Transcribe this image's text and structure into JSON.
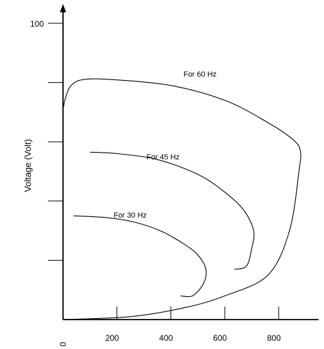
{
  "chart_data": {
    "type": "line",
    "title": "",
    "xlabel": "",
    "ylabel": "Voltage (Volt)",
    "xlim": [
      0,
      870
    ],
    "ylim": [
      0,
      100
    ],
    "x_ticks": [
      {
        "value": 0,
        "label": "0"
      },
      {
        "value": 200,
        "label": "200"
      },
      {
        "value": 400,
        "label": "400"
      },
      {
        "value": 600,
        "label": "600"
      },
      {
        "value": 800,
        "label": "800"
      }
    ],
    "y_ticks": [
      {
        "value": 20,
        "label": ""
      },
      {
        "value": 40,
        "label": ""
      },
      {
        "value": 60,
        "label": ""
      },
      {
        "value": 80,
        "label": ""
      },
      {
        "value": 100,
        "label": "100"
      }
    ],
    "grid": false,
    "legend": "none",
    "series": [
      {
        "name": "For 60 Hz",
        "points": [
          [
            0,
            71
          ],
          [
            10,
            75
          ],
          [
            30,
            79
          ],
          [
            75,
            81
          ],
          [
            180,
            81
          ],
          [
            400,
            79
          ],
          [
            600,
            74
          ],
          [
            750,
            67
          ],
          [
            850,
            61
          ],
          [
            880,
            57
          ],
          [
            875,
            50
          ],
          [
            840,
            30
          ],
          [
            760,
            15
          ],
          [
            600,
            8
          ],
          [
            450,
            4
          ],
          [
            250,
            1
          ],
          [
            0,
            0
          ]
        ]
      },
      {
        "name": "For 45 Hz",
        "points": [
          [
            100,
            56.5
          ],
          [
            200,
            56
          ],
          [
            350,
            54
          ],
          [
            500,
            49
          ],
          [
            600,
            43
          ],
          [
            670,
            37
          ],
          [
            707,
            30
          ],
          [
            700,
            24
          ],
          [
            680,
            18
          ],
          [
            635,
            17
          ]
        ]
      },
      {
        "name": "For 30 Hz",
        "points": [
          [
            40,
            35
          ],
          [
            150,
            34.5
          ],
          [
            260,
            33
          ],
          [
            360,
            30
          ],
          [
            440,
            26
          ],
          [
            498,
            22
          ],
          [
            530,
            17
          ],
          [
            520,
            12
          ],
          [
            480,
            8
          ],
          [
            436,
            8
          ]
        ]
      }
    ]
  }
}
